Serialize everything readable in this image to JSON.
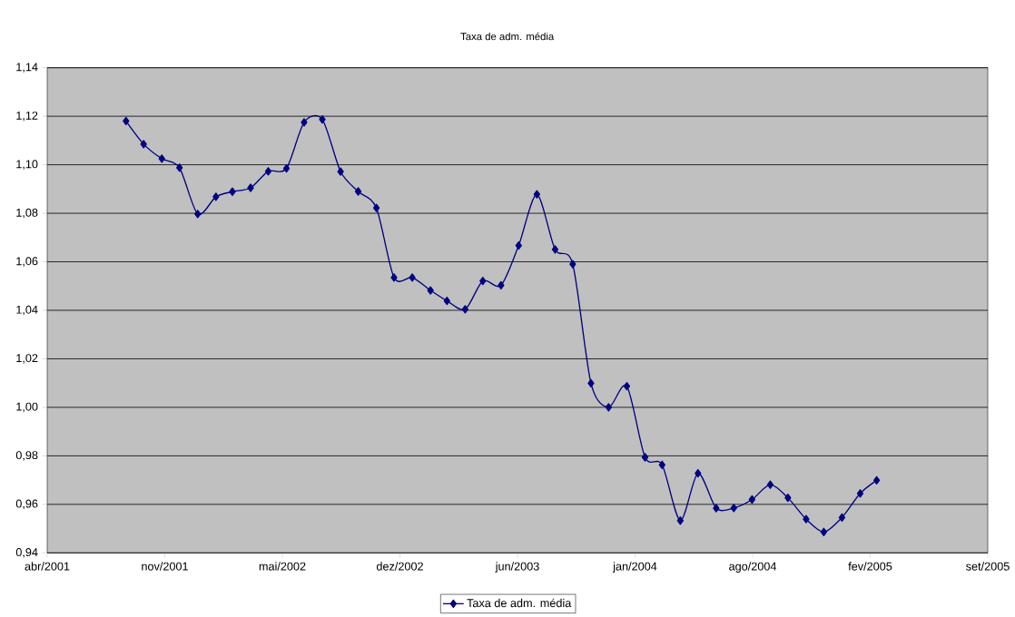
{
  "chart_data": {
    "type": "line",
    "title": "Taxa de adm. média",
    "x": [
      "2001-09-01",
      "2001-10-01",
      "2001-11-01",
      "2001-12-01",
      "2002-01-01",
      "2002-02-01",
      "2002-03-01",
      "2002-04-01",
      "2002-05-01",
      "2002-06-01",
      "2002-07-01",
      "2002-08-01",
      "2002-09-01",
      "2002-10-01",
      "2002-11-01",
      "2002-12-01",
      "2003-01-01",
      "2003-02-01",
      "2003-03-01",
      "2003-04-01",
      "2003-05-01",
      "2003-06-01",
      "2003-07-01",
      "2003-08-01",
      "2003-09-01",
      "2003-10-01",
      "2003-11-01",
      "2003-12-01",
      "2004-01-01",
      "2004-02-01",
      "2004-03-01",
      "2004-04-01",
      "2004-05-01",
      "2004-06-01",
      "2004-07-01",
      "2004-08-01",
      "2004-09-01",
      "2004-10-01",
      "2004-11-01",
      "2004-12-01",
      "2005-01-01",
      "2005-02-01",
      "2005-03-01"
    ],
    "series": [
      {
        "name": "Taxa de adm. média",
        "color": "#000080",
        "values": [
          1.118,
          1.1085,
          1.1025,
          1.0988,
          1.0797,
          1.0868,
          1.0889,
          1.0905,
          1.0973,
          1.0985,
          1.1175,
          1.1187,
          1.0972,
          1.089,
          1.0822,
          1.0535,
          1.0535,
          1.0482,
          1.0439,
          1.0404,
          1.0521,
          1.0503,
          1.0667,
          1.0878,
          1.0651,
          1.059,
          1.0099,
          1.0,
          1.0087,
          0.9794,
          0.9763,
          0.9533,
          0.9728,
          0.9584,
          0.9585,
          0.962,
          0.9681,
          0.9627,
          0.9539,
          0.9486,
          0.9546,
          0.9645,
          0.9699
        ]
      }
    ],
    "xlim": [
      "2001-04-20",
      "2005-09-06"
    ],
    "xticks": [
      {
        "value": "2001-04-20",
        "label": "abr/2001"
      },
      {
        "value": "2001-11-06",
        "label": "nov/2001"
      },
      {
        "value": "2002-05-25",
        "label": "mai/2002"
      },
      {
        "value": "2002-12-11",
        "label": "dez/2002"
      },
      {
        "value": "2003-06-29",
        "label": "jun/2003"
      },
      {
        "value": "2004-01-15",
        "label": "jan/2004"
      },
      {
        "value": "2004-08-02",
        "label": "ago/2004"
      },
      {
        "value": "2005-02-18",
        "label": "fev/2005"
      },
      {
        "value": "2005-09-06",
        "label": "set/2005"
      }
    ],
    "ylim": [
      0.94,
      1.14
    ],
    "yticks": [
      {
        "value": 0.94,
        "label": "0,94"
      },
      {
        "value": 0.96,
        "label": "0,96"
      },
      {
        "value": 0.98,
        "label": "0,98"
      },
      {
        "value": 1.0,
        "label": "1,00"
      },
      {
        "value": 1.02,
        "label": "1,02"
      },
      {
        "value": 1.04,
        "label": "1,04"
      },
      {
        "value": 1.06,
        "label": "1,06"
      },
      {
        "value": 1.08,
        "label": "1,08"
      },
      {
        "value": 1.1,
        "label": "1,10"
      },
      {
        "value": 1.12,
        "label": "1,12"
      },
      {
        "value": 1.14,
        "label": "1,14"
      }
    ],
    "grid": "y",
    "legend": "bottom",
    "marker": "diamond",
    "line_style": "solid"
  }
}
